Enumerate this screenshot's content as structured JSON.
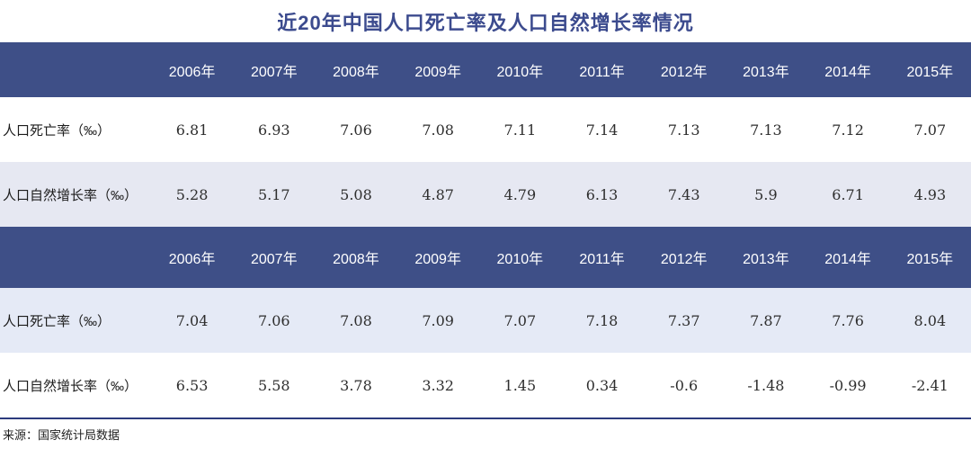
{
  "title": "近20年中国人口死亡率及人口自然增长率情况",
  "source": "来源：国家统计局数据",
  "colors": {
    "header_bg": "#3e4f87",
    "title": "#3c4b8e",
    "row_tint_1": "#e6e8f2",
    "row_tint_2": "#e5eaf6",
    "divider": "#2c3b7d",
    "header_text": "#ffffff"
  },
  "chart_data": {
    "type": "table",
    "title": "近20年中国人口死亡率及人口自然增长率情况",
    "source": "来源：国家统计局数据",
    "sections": [
      {
        "years": [
          "2006年",
          "2007年",
          "2008年",
          "2009年",
          "2010年",
          "2011年",
          "2012年",
          "2013年",
          "2014年",
          "2015年"
        ],
        "rows": [
          {
            "label": "人口死亡率（‰）",
            "shade": "none",
            "values": [
              "6.81",
              "6.93",
              "7.06",
              "7.08",
              "7.11",
              "7.14",
              "7.13",
              "7.13",
              "7.12",
              "7.07"
            ]
          },
          {
            "label": "人口自然增长率（‰）",
            "shade": "tint1",
            "values": [
              "5.28",
              "5.17",
              "5.08",
              "4.87",
              "4.79",
              "6.13",
              "7.43",
              "5.9",
              "6.71",
              "4.93"
            ]
          }
        ]
      },
      {
        "years": [
          "2006年",
          "2007年",
          "2008年",
          "2009年",
          "2010年",
          "2011年",
          "2012年",
          "2013年",
          "2014年",
          "2015年"
        ],
        "rows": [
          {
            "label": "人口死亡率（‰）",
            "shade": "tint2",
            "values": [
              "7.04",
              "7.06",
              "7.08",
              "7.09",
              "7.07",
              "7.18",
              "7.37",
              "7.87",
              "7.76",
              "8.04"
            ]
          },
          {
            "label": "人口自然增长率（‰）",
            "shade": "none",
            "values": [
              "6.53",
              "5.58",
              "3.78",
              "3.32",
              "1.45",
              "0.34",
              "-0.6",
              "-1.48",
              "-0.99",
              "-2.41"
            ]
          }
        ]
      }
    ]
  }
}
